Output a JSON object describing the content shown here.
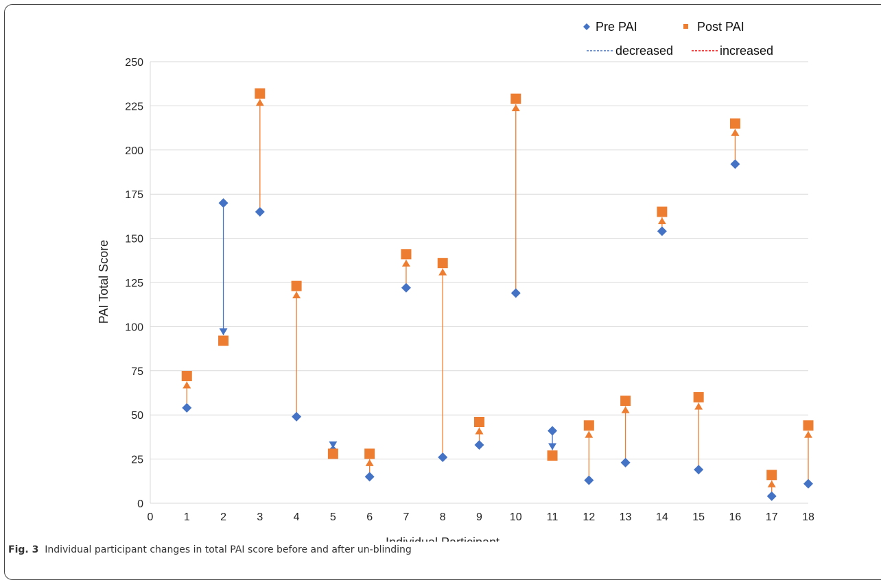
{
  "chart_data": {
    "type": "scatter",
    "xlabel": "Individual Participant",
    "ylabel": "PAI Total  Score",
    "xlim": [
      0,
      18
    ],
    "ylim": [
      0,
      250
    ],
    "x_ticks": [
      "0",
      "1",
      "2",
      "3",
      "4",
      "5",
      "6",
      "7",
      "8",
      "9",
      "10",
      "11",
      "12",
      "13",
      "14",
      "15",
      "16",
      "17",
      "18"
    ],
    "y_ticks": [
      "0",
      "25",
      "50",
      "75",
      "100",
      "125",
      "150",
      "175",
      "200",
      "225",
      "250"
    ],
    "grid": "horizontal",
    "legend_placement": "top-right",
    "x": [
      1,
      2,
      3,
      4,
      5,
      6,
      7,
      8,
      9,
      10,
      11,
      12,
      13,
      14,
      15,
      16,
      17,
      18
    ],
    "series": [
      {
        "name": "Pre PAI",
        "marker": "diamond",
        "color": "#4472c4",
        "values": [
          54,
          170,
          165,
          49,
          30,
          15,
          122,
          26,
          33,
          119,
          41,
          13,
          23,
          154,
          19,
          192,
          4,
          11
        ]
      },
      {
        "name": "Post PAI",
        "marker": "square",
        "color": "#ed7d31",
        "values": [
          72,
          92,
          232,
          123,
          28,
          28,
          141,
          136,
          46,
          229,
          27,
          44,
          58,
          165,
          60,
          215,
          16,
          44
        ]
      }
    ],
    "change_lines": [
      {
        "name": "decreased",
        "color": "#4472c4"
      },
      {
        "name": "increased",
        "color": "#ed7d31"
      }
    ],
    "legend_line_colors": {
      "decreased": "#4472c4",
      "increased": "#ff0000"
    }
  },
  "caption": {
    "label": "Fig. 3",
    "text": "Individual participant changes in total PAI score before and after un-blinding"
  }
}
